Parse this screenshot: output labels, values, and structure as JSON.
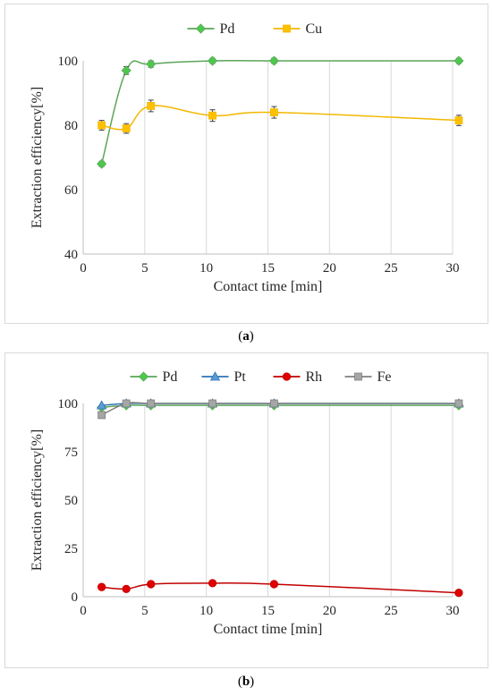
{
  "chart_data": [
    {
      "type": "line",
      "caption_label": "a",
      "xlabel": "Contact time [min]",
      "ylabel": "Extraction efficiency[%]",
      "xlim": [
        0,
        30
      ],
      "ylim": [
        40,
        100
      ],
      "xticks": [
        0,
        5,
        10,
        15,
        20,
        25,
        30
      ],
      "yticks": [
        40,
        60,
        80,
        100
      ],
      "grid": "vertical",
      "legend": "top-center",
      "series": [
        {
          "name": "Pd",
          "color": "#4cc94c",
          "line_color": "#5aa55a",
          "marker": "diamond",
          "x": [
            1.5,
            3.5,
            5.5,
            10.5,
            15.5,
            30.5
          ],
          "y": [
            68,
            97,
            99,
            100,
            100,
            100
          ],
          "err": [
            0.8,
            1.2,
            1.0,
            0.8,
            0.8,
            0.8
          ]
        },
        {
          "name": "Cu",
          "color": "#ffc000",
          "line_color": "#f2b800",
          "marker": "square",
          "x": [
            1.5,
            3.5,
            5.5,
            10.5,
            15.5,
            30.5
          ],
          "y": [
            80,
            79,
            86,
            83,
            84,
            81.5
          ],
          "err": [
            1.5,
            1.5,
            1.8,
            1.8,
            1.8,
            1.6
          ]
        }
      ]
    },
    {
      "type": "line",
      "caption_label": "b",
      "xlabel": "Contact time [min]",
      "ylabel": "Extraction efficiency[%]",
      "xlim": [
        0,
        30
      ],
      "ylim": [
        0,
        100
      ],
      "xticks": [
        0,
        5,
        10,
        15,
        20,
        25,
        30
      ],
      "yticks": [
        0,
        25,
        50,
        75,
        100
      ],
      "grid": "vertical",
      "legend": "top-center",
      "series": [
        {
          "name": "Pd",
          "color": "#4cc94c",
          "line_color": "#5aa55a",
          "marker": "diamond",
          "x": [
            1.5,
            3.5,
            5.5,
            10.5,
            15.5,
            30.5
          ],
          "y": [
            98,
            99,
            99,
            99,
            99,
            99
          ]
        },
        {
          "name": "Pt",
          "color": "#5b9bd5",
          "line_color": "#2e75b6",
          "marker": "triangle",
          "x": [
            1.5,
            3.5,
            5.5,
            10.5,
            15.5,
            30.5
          ],
          "y": [
            99,
            100,
            100,
            100,
            100,
            100
          ]
        },
        {
          "name": "Rh",
          "color": "#e00000",
          "line_color": "#c00000",
          "marker": "circle",
          "x": [
            1.5,
            3.5,
            5.5,
            10.5,
            15.5,
            30.5
          ],
          "y": [
            5,
            4,
            6.5,
            7,
            6.5,
            2
          ]
        },
        {
          "name": "Fe",
          "color": "#a6a6a6",
          "line_color": "#7f7f7f",
          "marker": "square",
          "x": [
            1.5,
            3.5,
            5.5,
            10.5,
            15.5,
            30.5
          ],
          "y": [
            94,
            100,
            100,
            100,
            100,
            100
          ]
        }
      ]
    }
  ]
}
